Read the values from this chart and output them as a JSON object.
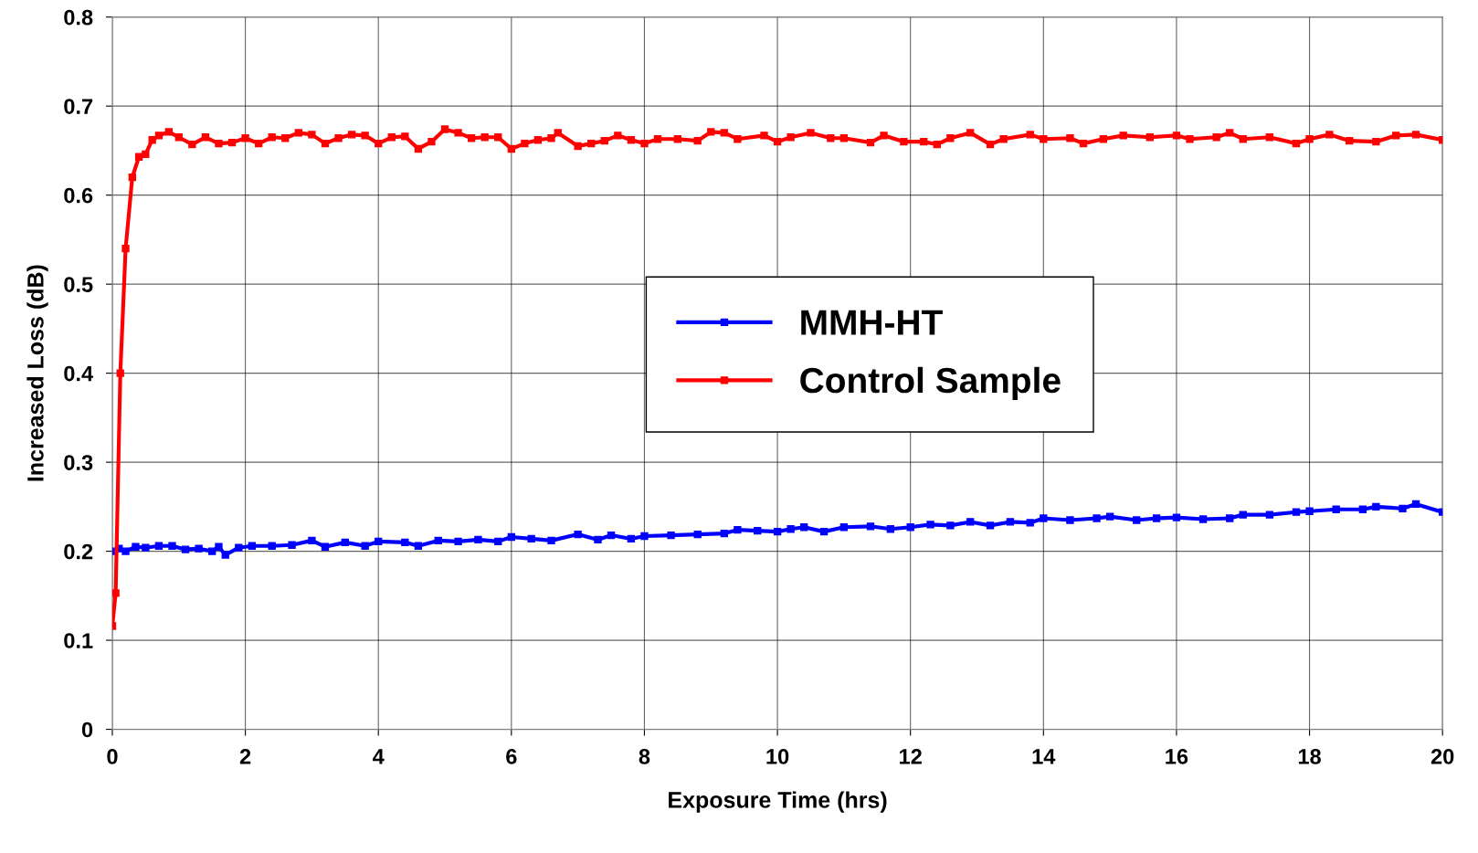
{
  "chart_data": {
    "type": "line",
    "xlabel": "Exposure Time (hrs)",
    "ylabel": "Increased Loss (dB)",
    "xlim": [
      0,
      20
    ],
    "xticks": [
      0,
      2,
      4,
      6,
      8,
      10,
      12,
      14,
      16,
      18,
      20
    ],
    "ylim": [
      0,
      0.8
    ],
    "yticks": [
      0,
      0.1,
      0.2,
      0.3,
      0.4,
      0.5,
      0.6,
      0.7,
      0.8
    ],
    "grid": true,
    "legend": "center",
    "marker": "square",
    "line_style": "solid",
    "series": [
      {
        "name": "MMH-HT",
        "color": "#0000ff",
        "x": [
          0,
          0.1,
          0.2,
          0.35,
          0.5,
          0.7,
          0.9,
          1.1,
          1.3,
          1.5,
          1.6,
          1.7,
          1.9,
          2.1,
          2.4,
          2.7,
          3.0,
          3.2,
          3.5,
          3.8,
          4.0,
          4.4,
          4.6,
          4.9,
          5.2,
          5.5,
          5.8,
          6.0,
          6.3,
          6.6,
          7.0,
          7.3,
          7.5,
          7.8,
          8.0,
          8.4,
          8.8,
          9.2,
          9.4,
          9.7,
          10.0,
          10.2,
          10.4,
          10.7,
          11.0,
          11.4,
          11.7,
          12.0,
          12.3,
          12.6,
          12.9,
          13.2,
          13.5,
          13.8,
          14.0,
          14.4,
          14.8,
          15.0,
          15.4,
          15.7,
          16.0,
          16.4,
          16.8,
          17.0,
          17.4,
          17.8,
          18.0,
          18.4,
          18.8,
          19.0,
          19.4,
          19.6,
          20.0
        ],
        "values": [
          0.2,
          0.203,
          0.2,
          0.205,
          0.204,
          0.206,
          0.206,
          0.202,
          0.203,
          0.2,
          0.205,
          0.196,
          0.204,
          0.206,
          0.206,
          0.207,
          0.212,
          0.205,
          0.21,
          0.206,
          0.211,
          0.21,
          0.206,
          0.212,
          0.211,
          0.213,
          0.211,
          0.216,
          0.214,
          0.212,
          0.219,
          0.213,
          0.218,
          0.214,
          0.217,
          0.218,
          0.219,
          0.22,
          0.224,
          0.223,
          0.222,
          0.225,
          0.227,
          0.222,
          0.227,
          0.228,
          0.225,
          0.227,
          0.23,
          0.229,
          0.233,
          0.229,
          0.233,
          0.232,
          0.237,
          0.235,
          0.237,
          0.239,
          0.235,
          0.237,
          0.238,
          0.236,
          0.237,
          0.241,
          0.241,
          0.244,
          0.245,
          0.247,
          0.247,
          0.25,
          0.248,
          0.253,
          0.244
        ]
      },
      {
        "name": "Control Sample",
        "color": "#ff0000",
        "x": [
          0,
          0.05,
          0.12,
          0.2,
          0.3,
          0.4,
          0.5,
          0.6,
          0.7,
          0.85,
          1.0,
          1.2,
          1.4,
          1.6,
          1.8,
          2.0,
          2.2,
          2.4,
          2.6,
          2.8,
          3.0,
          3.2,
          3.4,
          3.6,
          3.8,
          4.0,
          4.2,
          4.4,
          4.6,
          4.8,
          5.0,
          5.2,
          5.4,
          5.6,
          5.8,
          6.0,
          6.2,
          6.4,
          6.6,
          6.7,
          7.0,
          7.2,
          7.4,
          7.6,
          7.8,
          8.0,
          8.2,
          8.5,
          8.8,
          9.0,
          9.2,
          9.4,
          9.8,
          10.0,
          10.2,
          10.5,
          10.8,
          11.0,
          11.4,
          11.6,
          11.9,
          12.2,
          12.4,
          12.6,
          12.9,
          13.2,
          13.4,
          13.8,
          14.0,
          14.4,
          14.6,
          14.9,
          15.2,
          15.6,
          16.0,
          16.2,
          16.6,
          16.8,
          17.0,
          17.4,
          17.8,
          18.0,
          18.3,
          18.6,
          19.0,
          19.3,
          19.6,
          20.0
        ],
        "values": [
          0.116,
          0.153,
          0.4,
          0.54,
          0.62,
          0.643,
          0.646,
          0.662,
          0.667,
          0.671,
          0.665,
          0.657,
          0.665,
          0.658,
          0.659,
          0.664,
          0.658,
          0.665,
          0.664,
          0.67,
          0.668,
          0.658,
          0.664,
          0.668,
          0.667,
          0.658,
          0.665,
          0.666,
          0.652,
          0.66,
          0.674,
          0.67,
          0.664,
          0.665,
          0.665,
          0.652,
          0.658,
          0.662,
          0.664,
          0.67,
          0.655,
          0.658,
          0.661,
          0.667,
          0.662,
          0.658,
          0.663,
          0.663,
          0.661,
          0.671,
          0.67,
          0.663,
          0.667,
          0.66,
          0.665,
          0.67,
          0.664,
          0.664,
          0.659,
          0.667,
          0.66,
          0.66,
          0.657,
          0.664,
          0.67,
          0.657,
          0.663,
          0.668,
          0.663,
          0.664,
          0.658,
          0.663,
          0.667,
          0.665,
          0.667,
          0.663,
          0.665,
          0.67,
          0.663,
          0.665,
          0.658,
          0.663,
          0.668,
          0.661,
          0.66,
          0.667,
          0.668,
          0.662
        ]
      }
    ]
  }
}
